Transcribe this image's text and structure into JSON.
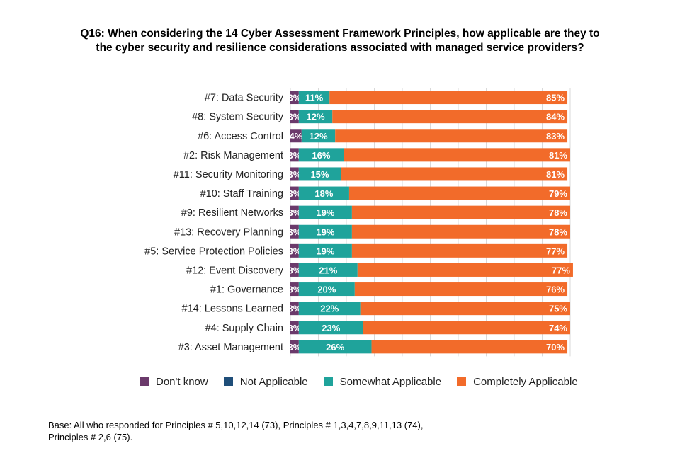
{
  "title": {
    "line1": "Q16: When considering the 14 Cyber Assessment Framework Principles, how applicable are they to",
    "line2": "the cyber security and resilience considerations associated with managed service providers?"
  },
  "footnote": {
    "line1": "Base: All who responded for Principles # 5,10,12,14 (73), Principles # 1,3,4,7,8,9,11,13 (74),",
    "line2": "Principles # 2,6 (75)."
  },
  "chart_data": {
    "type": "bar",
    "orientation": "horizontal",
    "stacked": true,
    "xlim": [
      0,
      100
    ],
    "legend_position": "bottom",
    "categories": [
      "#7: Data Security",
      "#8: System Security",
      "#6: Access Control",
      "#2: Risk Management",
      "#11: Security Monitoring",
      "#10: Staff Training",
      "#9: Resilient Networks",
      "#13: Recovery Planning",
      "#5: Service Protection Policies",
      "#12: Event Discovery",
      "#1: Governance",
      "#14: Lessons Learned",
      "#4: Supply Chain",
      "#3: Asset Management"
    ],
    "series": [
      {
        "name": "Don't know",
        "color": "#6b3a6b",
        "values": [
          3,
          3,
          4,
          3,
          3,
          3,
          3,
          3,
          3,
          3,
          3,
          3,
          3,
          3
        ]
      },
      {
        "name": "Not Applicable",
        "color": "#1f4e79",
        "values": [
          0,
          0,
          0,
          0,
          0,
          0,
          0,
          0,
          0,
          0,
          0,
          0,
          0,
          0
        ]
      },
      {
        "name": "Somewhat Applicable",
        "color": "#1fa39b",
        "values": [
          11,
          12,
          12,
          16,
          15,
          18,
          19,
          19,
          19,
          21,
          20,
          22,
          23,
          26
        ]
      },
      {
        "name": "Completely Applicable",
        "color": "#f26b2a",
        "values": [
          85,
          84,
          83,
          81,
          81,
          79,
          78,
          78,
          77,
          77,
          76,
          75,
          74,
          70
        ]
      }
    ]
  }
}
